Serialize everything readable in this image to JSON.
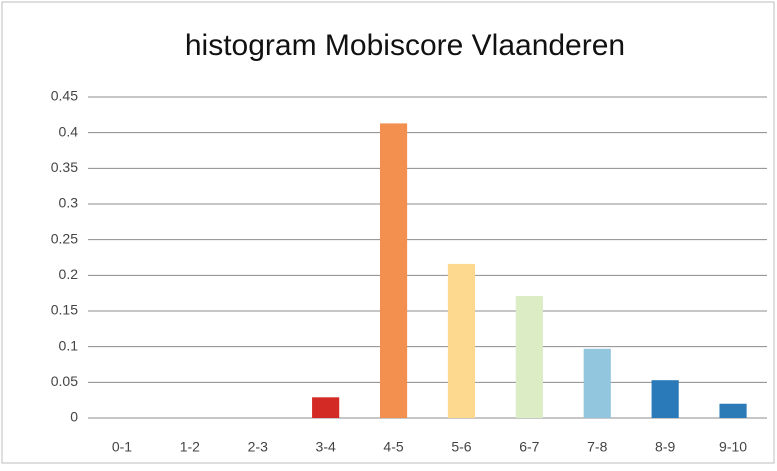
{
  "chart_data": {
    "type": "bar",
    "title": "histogram Mobiscore Vlaanderen",
    "categories": [
      "0-1",
      "1-2",
      "2-3",
      "3-4",
      "4-5",
      "5-6",
      "6-7",
      "7-8",
      "8-9",
      "9-10"
    ],
    "values": [
      0,
      0,
      0,
      0.029,
      0.413,
      0.216,
      0.171,
      0.097,
      0.053,
      0.02
    ],
    "colors": [
      "#a50026",
      "#c2272d",
      "#d73027",
      "#d42a26",
      "#f4904f",
      "#fdd98f",
      "#dcecc4",
      "#92c5de",
      "#2a7ab9",
      "#2c7bb6"
    ],
    "ylim": [
      0,
      0.45
    ],
    "yticks": [
      0,
      0.05,
      0.1,
      0.15,
      0.2,
      0.25,
      0.3,
      0.35,
      0.4,
      0.45
    ],
    "grid": true
  }
}
